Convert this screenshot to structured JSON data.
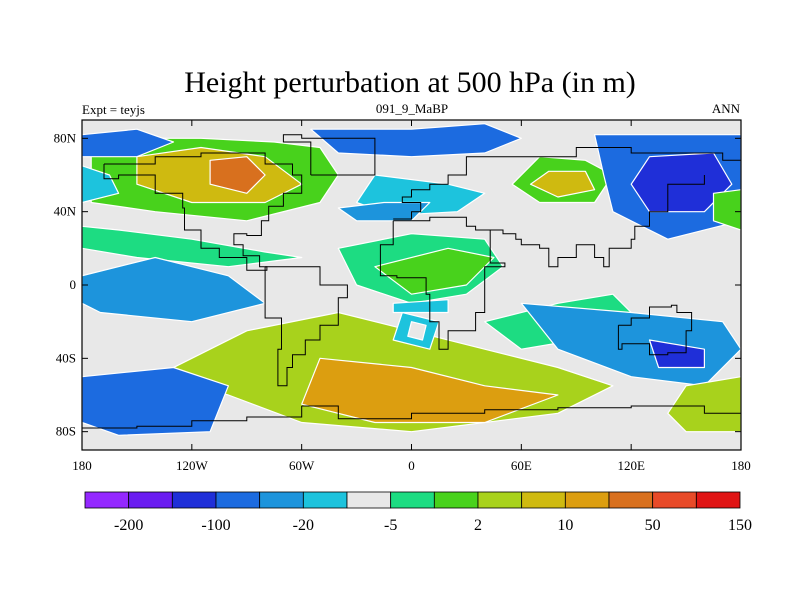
{
  "chart_data": {
    "type": "heatmap",
    "title": "Height perturbation at 500 hPa (in m)",
    "subtitle_left": "Expt = teyjs",
    "subtitle_center": "091_9_MaBP",
    "subtitle_right": "ANN",
    "x_ticks": [
      "180",
      "120W",
      "60W",
      "0",
      "60E",
      "120E",
      "180"
    ],
    "x_range": [
      -180,
      180
    ],
    "y_ticks": [
      "80N",
      "40N",
      "0",
      "40S",
      "80S"
    ],
    "y_range": [
      -90,
      90
    ],
    "colorbar_labels": [
      "-200",
      "-100",
      "-20",
      "-5",
      "2",
      "10",
      "50",
      "150"
    ],
    "colorbar_colors": [
      "#9428ff",
      "#6a1cf0",
      "#1f2fd8",
      "#1c6be0",
      "#1d94dc",
      "#1dc3dd",
      "#e8e8e8",
      "#1ddc82",
      "#48d21c",
      "#a8d21c",
      "#cfba10",
      "#dc9e10",
      "#d8701e",
      "#e84a28",
      "#e01414"
    ],
    "regions": [
      {
        "level": 2,
        "points": [
          [
            -175,
            80
          ],
          [
            -115,
            80
          ],
          [
            -75,
            78
          ],
          [
            -50,
            75
          ],
          [
            -40,
            60
          ],
          [
            -50,
            45
          ],
          [
            -90,
            35
          ],
          [
            -140,
            40
          ],
          [
            -175,
            45
          ]
        ]
      },
      {
        "level": 4,
        "points": [
          [
            -150,
            70
          ],
          [
            -115,
            75
          ],
          [
            -80,
            70
          ],
          [
            -60,
            55
          ],
          [
            -80,
            45
          ],
          [
            -120,
            45
          ],
          [
            -150,
            55
          ]
        ]
      },
      {
        "level": 6,
        "points": [
          [
            -110,
            68
          ],
          [
            -90,
            70
          ],
          [
            -80,
            60
          ],
          [
            -90,
            50
          ],
          [
            -110,
            55
          ]
        ]
      },
      {
        "level": -3,
        "points": [
          [
            -180,
            82
          ],
          [
            -150,
            85
          ],
          [
            -130,
            78
          ],
          [
            -150,
            70
          ],
          [
            -180,
            70
          ]
        ]
      },
      {
        "level": -1,
        "points": [
          [
            -180,
            65
          ],
          [
            -165,
            60
          ],
          [
            -160,
            50
          ],
          [
            -180,
            45
          ]
        ]
      },
      {
        "level": -3,
        "points": [
          [
            -55,
            85
          ],
          [
            0,
            85
          ],
          [
            40,
            88
          ],
          [
            60,
            80
          ],
          [
            40,
            72
          ],
          [
            0,
            70
          ],
          [
            -40,
            72
          ]
        ]
      },
      {
        "level": -1,
        "points": [
          [
            -20,
            60
          ],
          [
            20,
            55
          ],
          [
            40,
            50
          ],
          [
            25,
            40
          ],
          [
            -10,
            38
          ],
          [
            -30,
            45
          ]
        ]
      },
      {
        "level": -2,
        "points": [
          [
            -40,
            42
          ],
          [
            -15,
            45
          ],
          [
            10,
            45
          ],
          [
            0,
            35
          ],
          [
            -30,
            35
          ]
        ]
      },
      {
        "level": 2,
        "points": [
          [
            70,
            70
          ],
          [
            95,
            68
          ],
          [
            110,
            60
          ],
          [
            100,
            45
          ],
          [
            70,
            45
          ],
          [
            55,
            55
          ]
        ]
      },
      {
        "level": 4,
        "points": [
          [
            75,
            62
          ],
          [
            95,
            62
          ],
          [
            100,
            52
          ],
          [
            80,
            48
          ],
          [
            65,
            55
          ]
        ]
      },
      {
        "level": -3,
        "points": [
          [
            100,
            82
          ],
          [
            180,
            82
          ],
          [
            180,
            35
          ],
          [
            140,
            25
          ],
          [
            110,
            40
          ],
          [
            105,
            60
          ]
        ]
      },
      {
        "level": -4,
        "points": [
          [
            130,
            70
          ],
          [
            165,
            72
          ],
          [
            175,
            55
          ],
          [
            160,
            40
          ],
          [
            130,
            40
          ],
          [
            120,
            55
          ]
        ]
      },
      {
        "level": 2,
        "points": [
          [
            165,
            50
          ],
          [
            180,
            52
          ],
          [
            180,
            30
          ],
          [
            165,
            35
          ]
        ]
      },
      {
        "level": 1,
        "points": [
          [
            -160,
            30
          ],
          [
            -120,
            25
          ],
          [
            -80,
            18
          ],
          [
            -60,
            15
          ],
          [
            -100,
            10
          ],
          [
            -150,
            15
          ],
          [
            -180,
            20
          ],
          [
            -180,
            32
          ]
        ]
      },
      {
        "level": -2,
        "points": [
          [
            -180,
            5
          ],
          [
            -140,
            15
          ],
          [
            -100,
            5
          ],
          [
            -80,
            -10
          ],
          [
            -120,
            -20
          ],
          [
            -170,
            -15
          ],
          [
            -180,
            -10
          ]
        ]
      },
      {
        "level": 1,
        "points": [
          [
            -40,
            20
          ],
          [
            0,
            28
          ],
          [
            40,
            25
          ],
          [
            50,
            10
          ],
          [
            30,
            -5
          ],
          [
            0,
            -10
          ],
          [
            -30,
            0
          ]
        ]
      },
      {
        "level": 2,
        "points": [
          [
            -20,
            10
          ],
          [
            20,
            20
          ],
          [
            45,
            15
          ],
          [
            30,
            0
          ],
          [
            0,
            -5
          ]
        ]
      },
      {
        "level": 1,
        "points": [
          [
            40,
            -20
          ],
          [
            80,
            -10
          ],
          [
            110,
            -5
          ],
          [
            120,
            -15
          ],
          [
            90,
            -30
          ],
          [
            60,
            -35
          ]
        ]
      },
      {
        "level": 3,
        "points": [
          [
            -90,
            -25
          ],
          [
            -40,
            -15
          ],
          [
            0,
            -25
          ],
          [
            40,
            -35
          ],
          [
            80,
            -45
          ],
          [
            110,
            -55
          ],
          [
            80,
            -70
          ],
          [
            0,
            -80
          ],
          [
            -60,
            -75
          ],
          [
            -100,
            -60
          ],
          [
            -140,
            -50
          ],
          [
            -110,
            -35
          ]
        ]
      },
      {
        "level": 5,
        "points": [
          [
            -50,
            -40
          ],
          [
            0,
            -45
          ],
          [
            40,
            -55
          ],
          [
            80,
            -60
          ],
          [
            40,
            -75
          ],
          [
            -20,
            -75
          ],
          [
            -60,
            -65
          ]
        ]
      },
      {
        "level": -3,
        "points": [
          [
            -180,
            -50
          ],
          [
            -130,
            -45
          ],
          [
            -100,
            -55
          ],
          [
            -110,
            -80
          ],
          [
            -160,
            -82
          ],
          [
            -180,
            -75
          ]
        ]
      },
      {
        "level": -2,
        "points": [
          [
            60,
            -10
          ],
          [
            120,
            -15
          ],
          [
            170,
            -20
          ],
          [
            180,
            -35
          ],
          [
            160,
            -55
          ],
          [
            120,
            -50
          ],
          [
            80,
            -35
          ]
        ]
      },
      {
        "level": -4,
        "points": [
          [
            130,
            -30
          ],
          [
            160,
            -35
          ],
          [
            160,
            -45
          ],
          [
            135,
            -45
          ]
        ]
      },
      {
        "level": 3,
        "points": [
          [
            150,
            -55
          ],
          [
            180,
            -50
          ],
          [
            180,
            -80
          ],
          [
            150,
            -80
          ],
          [
            140,
            -70
          ]
        ]
      },
      {
        "level": -1,
        "points": [
          [
            -5,
            -15
          ],
          [
            15,
            -20
          ],
          [
            10,
            -35
          ],
          [
            -10,
            -30
          ]
        ]
      },
      {
        "level": 0,
        "points": [
          [
            0,
            -20
          ],
          [
            8,
            -22
          ],
          [
            6,
            -30
          ],
          [
            -2,
            -28
          ]
        ]
      },
      {
        "level": -1,
        "points": [
          [
            -10,
            -10
          ],
          [
            20,
            -8
          ],
          [
            20,
            -15
          ],
          [
            -10,
            -15
          ]
        ]
      }
    ]
  }
}
